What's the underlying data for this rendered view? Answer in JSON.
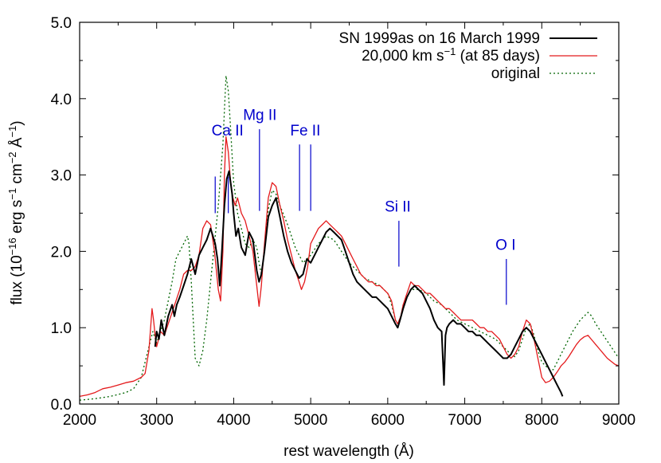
{
  "chart_data": {
    "type": "line",
    "xlabel": "rest wavelength (Å)",
    "ylabel": {
      "prefix": "flux (10",
      "exp1": "−16",
      "mid1": " erg s",
      "exp2": "−1",
      "mid2": " cm",
      "exp3": "−2",
      "mid3": " Å",
      "exp4": "−1",
      "suffix": ")"
    },
    "xlim": [
      2000,
      9000
    ],
    "ylim": [
      0.0,
      5.0
    ],
    "xticks": [
      2000,
      3000,
      4000,
      5000,
      6000,
      7000,
      8000,
      9000
    ],
    "yticks": [
      0.0,
      1.0,
      2.0,
      3.0,
      4.0,
      5.0
    ],
    "xtick_labels": [
      "2000",
      "3000",
      "4000",
      "5000",
      "6000",
      "7000",
      "8000",
      "9000"
    ],
    "ytick_labels": [
      "0.0",
      "1.0",
      "2.0",
      "3.0",
      "4.0",
      "5.0"
    ],
    "grid": false,
    "legend_position": "top-right",
    "legend": [
      {
        "label_parts": [
          "SN 1999as on 16 March 1999"
        ],
        "color": "#000000",
        "dash": "solid"
      },
      {
        "label_parts": [
          "20,000 km s",
          "−1",
          " (at 85 days)"
        ],
        "color": "#e41a1c",
        "dash": "solid"
      },
      {
        "label_parts": [
          "original"
        ],
        "color": "#006400",
        "dash": "dotted"
      }
    ],
    "annotations": [
      {
        "text": "Ca II",
        "x": 3920,
        "text_y": 3.52,
        "lines": [
          {
            "x": 3760,
            "y0": 2.98,
            "y1": 2.5
          },
          {
            "x": 3930,
            "y0": 2.98,
            "y1": 2.5
          }
        ]
      },
      {
        "text": "Mg II",
        "x": 4340,
        "text_y": 3.72,
        "lines": [
          {
            "x": 4335,
            "y0": 3.6,
            "y1": 2.53
          }
        ]
      },
      {
        "text": "Fe II",
        "x": 4930,
        "text_y": 3.52,
        "lines": [
          {
            "x": 4855,
            "y0": 3.4,
            "y1": 2.53
          },
          {
            "x": 5000,
            "y0": 3.4,
            "y1": 2.53
          }
        ]
      },
      {
        "text": "Si II",
        "x": 6130,
        "text_y": 2.52,
        "lines": [
          {
            "x": 6145,
            "y0": 2.4,
            "y1": 1.8
          }
        ]
      },
      {
        "text": "O I",
        "x": 7530,
        "text_y": 2.02,
        "lines": [
          {
            "x": 7540,
            "y0": 1.9,
            "y1": 1.3
          }
        ]
      }
    ],
    "series": [
      {
        "name": "SN 1999as on 16 March 1999",
        "color": "#000000",
        "dash": "solid",
        "x": [
          2980,
          3000,
          3030,
          3060,
          3100,
          3150,
          3200,
          3230,
          3260,
          3300,
          3350,
          3400,
          3450,
          3500,
          3550,
          3600,
          3650,
          3700,
          3730,
          3760,
          3790,
          3820,
          3850,
          3880,
          3910,
          3940,
          3960,
          3980,
          4000,
          4030,
          4060,
          4100,
          4150,
          4200,
          4250,
          4300,
          4330,
          4360,
          4400,
          4450,
          4500,
          4550,
          4600,
          4650,
          4700,
          4750,
          4800,
          4850,
          4900,
          4950,
          5000,
          5050,
          5100,
          5150,
          5200,
          5250,
          5300,
          5350,
          5400,
          5450,
          5500,
          5550,
          5600,
          5650,
          5700,
          5750,
          5800,
          5850,
          5900,
          5950,
          6000,
          6050,
          6100,
          6130,
          6160,
          6200,
          6250,
          6300,
          6350,
          6400,
          6450,
          6500,
          6550,
          6600,
          6650,
          6700,
          6730,
          6750,
          6770,
          6800,
          6850,
          6900,
          6950,
          7000,
          7050,
          7100,
          7150,
          7200,
          7250,
          7300,
          7350,
          7400,
          7450,
          7500,
          7550,
          7600,
          7650,
          7700,
          7750,
          7800,
          7850,
          7900,
          7950,
          8000,
          8050,
          8100,
          8150,
          8200,
          8250,
          8270
        ],
        "y": [
          0.75,
          0.95,
          0.85,
          1.1,
          0.9,
          1.15,
          1.3,
          1.15,
          1.3,
          1.4,
          1.55,
          1.7,
          1.9,
          1.7,
          1.95,
          2.05,
          2.15,
          2.3,
          2.2,
          2.1,
          1.9,
          1.55,
          2.05,
          2.6,
          2.95,
          3.05,
          2.9,
          2.75,
          2.5,
          2.2,
          2.3,
          2.05,
          1.95,
          2.25,
          2.15,
          1.75,
          1.6,
          1.7,
          2.0,
          2.45,
          2.6,
          2.7,
          2.45,
          2.2,
          2.0,
          1.85,
          1.75,
          1.65,
          1.7,
          1.9,
          1.85,
          1.95,
          2.05,
          2.15,
          2.25,
          2.3,
          2.25,
          2.2,
          2.15,
          2.0,
          1.85,
          1.7,
          1.6,
          1.55,
          1.5,
          1.45,
          1.4,
          1.4,
          1.35,
          1.3,
          1.25,
          1.15,
          1.05,
          1.0,
          1.1,
          1.25,
          1.4,
          1.5,
          1.55,
          1.5,
          1.45,
          1.35,
          1.25,
          1.1,
          1.0,
          0.95,
          0.25,
          0.9,
          1.0,
          1.05,
          1.1,
          1.05,
          1.05,
          1.0,
          0.95,
          0.95,
          0.9,
          0.9,
          0.85,
          0.8,
          0.75,
          0.7,
          0.65,
          0.6,
          0.6,
          0.65,
          0.75,
          0.85,
          0.95,
          1.0,
          0.95,
          0.85,
          0.75,
          0.65,
          0.55,
          0.45,
          0.35,
          0.25,
          0.15,
          0.1
        ]
      },
      {
        "name": "20,000 km s−1 (at 85 days)",
        "color": "#e41a1c",
        "dash": "solid",
        "x": [
          2000,
          2100,
          2200,
          2300,
          2400,
          2500,
          2600,
          2700,
          2800,
          2850,
          2900,
          2940,
          2960,
          2980,
          3000,
          3050,
          3100,
          3150,
          3200,
          3250,
          3300,
          3350,
          3400,
          3450,
          3500,
          3550,
          3600,
          3650,
          3700,
          3750,
          3800,
          3830,
          3860,
          3880,
          3900,
          3930,
          3960,
          3990,
          4020,
          4050,
          4100,
          4150,
          4200,
          4250,
          4300,
          4330,
          4360,
          4400,
          4450,
          4500,
          4550,
          4600,
          4650,
          4700,
          4750,
          4800,
          4850,
          4880,
          4920,
          4960,
          5000,
          5050,
          5100,
          5150,
          5200,
          5250,
          5300,
          5350,
          5400,
          5450,
          5500,
          5550,
          5600,
          5650,
          5700,
          5750,
          5800,
          5850,
          5900,
          5950,
          6000,
          6050,
          6100,
          6130,
          6170,
          6200,
          6250,
          6300,
          6350,
          6400,
          6450,
          6500,
          6550,
          6600,
          6650,
          6700,
          6750,
          6800,
          6850,
          6900,
          6950,
          7000,
          7050,
          7100,
          7150,
          7200,
          7250,
          7300,
          7350,
          7400,
          7450,
          7500,
          7550,
          7600,
          7650,
          7700,
          7750,
          7800,
          7850,
          7900,
          7950,
          8000,
          8050,
          8100,
          8150,
          8200,
          8250,
          8300,
          8350,
          8400,
          8450,
          8500,
          8550,
          8600,
          8650,
          8700,
          8750,
          8800,
          8850,
          8900,
          8950,
          9000
        ],
        "y": [
          0.1,
          0.12,
          0.15,
          0.2,
          0.22,
          0.25,
          0.28,
          0.3,
          0.35,
          0.4,
          0.7,
          1.25,
          1.1,
          0.9,
          0.75,
          0.95,
          0.9,
          1.05,
          1.2,
          1.35,
          1.5,
          1.7,
          1.75,
          1.75,
          1.8,
          1.95,
          2.3,
          2.4,
          2.35,
          2.0,
          1.5,
          1.35,
          2.0,
          3.0,
          3.5,
          3.3,
          2.9,
          2.7,
          2.6,
          2.7,
          2.5,
          2.4,
          2.2,
          2.0,
          1.55,
          1.28,
          1.55,
          2.1,
          2.7,
          2.9,
          2.85,
          2.6,
          2.4,
          2.15,
          1.95,
          1.75,
          1.6,
          1.5,
          1.6,
          1.8,
          2.1,
          2.2,
          2.3,
          2.35,
          2.4,
          2.35,
          2.3,
          2.25,
          2.2,
          2.1,
          2.0,
          1.9,
          1.8,
          1.7,
          1.65,
          1.6,
          1.6,
          1.55,
          1.55,
          1.5,
          1.45,
          1.35,
          1.1,
          1.05,
          1.15,
          1.3,
          1.45,
          1.6,
          1.55,
          1.55,
          1.5,
          1.45,
          1.45,
          1.4,
          1.35,
          1.3,
          1.25,
          1.25,
          1.2,
          1.15,
          1.1,
          1.1,
          1.1,
          1.1,
          1.05,
          1.0,
          1.0,
          0.95,
          0.95,
          0.9,
          0.85,
          0.75,
          0.65,
          0.6,
          0.65,
          0.75,
          0.95,
          1.1,
          1.05,
          0.85,
          0.6,
          0.35,
          0.28,
          0.3,
          0.35,
          0.42,
          0.5,
          0.55,
          0.62,
          0.7,
          0.78,
          0.84,
          0.88,
          0.9,
          0.84,
          0.78,
          0.72,
          0.66,
          0.6,
          0.56,
          0.52,
          0.5
        ]
      },
      {
        "name": "original",
        "color": "#006400",
        "dash": "dotted",
        "x": [
          2000,
          2200,
          2400,
          2600,
          2700,
          2800,
          2900,
          2950,
          3000,
          3050,
          3100,
          3150,
          3200,
          3250,
          3300,
          3350,
          3400,
          3420,
          3450,
          3500,
          3550,
          3600,
          3650,
          3700,
          3750,
          3800,
          3830,
          3860,
          3880,
          3900,
          3930,
          3960,
          4000,
          4050,
          4100,
          4150,
          4200,
          4250,
          4300,
          4330,
          4360,
          4400,
          4450,
          4500,
          4550,
          4600,
          4700,
          4800,
          4900,
          5000,
          5100,
          5200,
          5300,
          5400,
          5500,
          5600,
          5700,
          5800,
          5900,
          6000,
          6050,
          6100,
          6130,
          6170,
          6200,
          6300,
          6400,
          6500,
          6600,
          6700,
          6800,
          6900,
          7000,
          7100,
          7200,
          7300,
          7400,
          7500,
          7600,
          7650,
          7700,
          7750,
          7800,
          7850,
          7900,
          7950,
          8000,
          8050,
          8100,
          8150,
          8200,
          8300,
          8400,
          8500,
          8600,
          8650,
          8700,
          8800,
          8900,
          9000
        ],
        "y": [
          0.05,
          0.07,
          0.1,
          0.15,
          0.2,
          0.35,
          0.75,
          0.95,
          0.8,
          0.95,
          1.1,
          1.35,
          1.6,
          1.9,
          2.0,
          2.1,
          2.2,
          2.1,
          1.6,
          0.6,
          0.5,
          0.7,
          1.1,
          1.6,
          2.1,
          2.6,
          3.0,
          3.4,
          3.85,
          4.3,
          4.1,
          3.6,
          2.9,
          2.5,
          2.3,
          2.1,
          2.05,
          2.15,
          2.05,
          1.85,
          1.7,
          2.0,
          2.55,
          2.8,
          2.75,
          2.6,
          2.35,
          2.05,
          1.85,
          1.95,
          2.1,
          2.2,
          2.15,
          2.0,
          1.85,
          1.75,
          1.65,
          1.6,
          1.55,
          1.45,
          1.3,
          1.1,
          1.05,
          1.15,
          1.3,
          1.5,
          1.5,
          1.45,
          1.35,
          1.3,
          1.2,
          1.1,
          1.05,
          1.0,
          0.95,
          0.9,
          0.85,
          0.75,
          0.65,
          0.62,
          0.7,
          0.85,
          1.0,
          1.05,
          0.9,
          0.7,
          0.55,
          0.5,
          0.45,
          0.45,
          0.55,
          0.75,
          0.95,
          1.1,
          1.2,
          1.15,
          1.05,
          0.9,
          0.75,
          0.6
        ]
      }
    ]
  }
}
